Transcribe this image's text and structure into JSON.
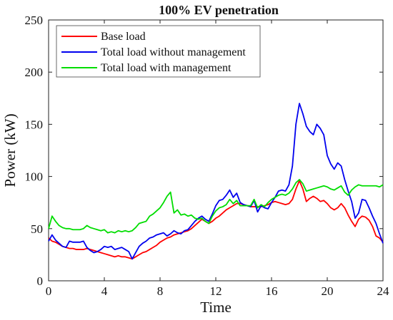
{
  "chart_data": {
    "type": "line",
    "title": "100% EV penetration",
    "xlabel": "Time",
    "ylabel": "Power (kW)",
    "xlim": [
      0,
      24
    ],
    "ylim": [
      0,
      250
    ],
    "xticks": [
      0,
      4,
      8,
      12,
      16,
      20,
      24
    ],
    "yticks": [
      0,
      50,
      100,
      150,
      200,
      250
    ],
    "grid": false,
    "legend_position": "top-left",
    "series": [
      {
        "name": "Base load",
        "color": "#ff0000",
        "points": [
          [
            0,
            41
          ],
          [
            0.25,
            38
          ],
          [
            0.5,
            37
          ],
          [
            0.75,
            35
          ],
          [
            1,
            33
          ],
          [
            1.25,
            32
          ],
          [
            1.5,
            31
          ],
          [
            1.75,
            31
          ],
          [
            2,
            30
          ],
          [
            2.25,
            30
          ],
          [
            2.5,
            30
          ],
          [
            2.75,
            31
          ],
          [
            3,
            30
          ],
          [
            3.25,
            29
          ],
          [
            3.5,
            28
          ],
          [
            3.75,
            27
          ],
          [
            4,
            26
          ],
          [
            4.25,
            25
          ],
          [
            4.5,
            24
          ],
          [
            4.75,
            23
          ],
          [
            5,
            24
          ],
          [
            5.25,
            23
          ],
          [
            5.5,
            23
          ],
          [
            5.75,
            22
          ],
          [
            6,
            21
          ],
          [
            6.25,
            23
          ],
          [
            6.5,
            25
          ],
          [
            6.75,
            27
          ],
          [
            7,
            28
          ],
          [
            7.25,
            30
          ],
          [
            7.5,
            32
          ],
          [
            7.75,
            34
          ],
          [
            8,
            37
          ],
          [
            8.25,
            39
          ],
          [
            8.5,
            41
          ],
          [
            8.75,
            42
          ],
          [
            9,
            44
          ],
          [
            9.25,
            45
          ],
          [
            9.5,
            46
          ],
          [
            9.75,
            47
          ],
          [
            10,
            48
          ],
          [
            10.25,
            50
          ],
          [
            10.5,
            53
          ],
          [
            10.75,
            56
          ],
          [
            11,
            59
          ],
          [
            11.25,
            57
          ],
          [
            11.5,
            55
          ],
          [
            11.75,
            57
          ],
          [
            12,
            60
          ],
          [
            12.25,
            62
          ],
          [
            12.5,
            65
          ],
          [
            12.75,
            68
          ],
          [
            13,
            70
          ],
          [
            13.25,
            72
          ],
          [
            13.5,
            74
          ],
          [
            13.75,
            74
          ],
          [
            14,
            73
          ],
          [
            14.25,
            72
          ],
          [
            14.5,
            71
          ],
          [
            14.75,
            71
          ],
          [
            15,
            71
          ],
          [
            15.25,
            71
          ],
          [
            15.5,
            72
          ],
          [
            15.75,
            73
          ],
          [
            16,
            75
          ],
          [
            16.25,
            76
          ],
          [
            16.5,
            75
          ],
          [
            16.75,
            74
          ],
          [
            17,
            73
          ],
          [
            17.25,
            74
          ],
          [
            17.5,
            78
          ],
          [
            17.75,
            88
          ],
          [
            18,
            96
          ],
          [
            18.25,
            88
          ],
          [
            18.5,
            76
          ],
          [
            18.75,
            79
          ],
          [
            19,
            81
          ],
          [
            19.25,
            79
          ],
          [
            19.5,
            76
          ],
          [
            19.75,
            77
          ],
          [
            20,
            74
          ],
          [
            20.25,
            70
          ],
          [
            20.5,
            68
          ],
          [
            20.75,
            70
          ],
          [
            21,
            74
          ],
          [
            21.25,
            70
          ],
          [
            21.5,
            63
          ],
          [
            21.75,
            57
          ],
          [
            22,
            52
          ],
          [
            22.25,
            59
          ],
          [
            22.5,
            62
          ],
          [
            22.75,
            61
          ],
          [
            23,
            58
          ],
          [
            23.25,
            52
          ],
          [
            23.5,
            43
          ],
          [
            23.75,
            41
          ],
          [
            24,
            37
          ]
        ]
      },
      {
        "name": "Total load without management",
        "color": "#0000ee",
        "points": [
          [
            0,
            38
          ],
          [
            0.25,
            44
          ],
          [
            0.5,
            39
          ],
          [
            0.75,
            36
          ],
          [
            1,
            33
          ],
          [
            1.25,
            32
          ],
          [
            1.5,
            38
          ],
          [
            1.75,
            37
          ],
          [
            2,
            37
          ],
          [
            2.25,
            37
          ],
          [
            2.5,
            38
          ],
          [
            2.75,
            32
          ],
          [
            3,
            29
          ],
          [
            3.25,
            27
          ],
          [
            3.5,
            28
          ],
          [
            3.75,
            30
          ],
          [
            4,
            33
          ],
          [
            4.25,
            32
          ],
          [
            4.5,
            33
          ],
          [
            4.75,
            30
          ],
          [
            5,
            31
          ],
          [
            5.25,
            32
          ],
          [
            5.5,
            30
          ],
          [
            5.75,
            28
          ],
          [
            6,
            21
          ],
          [
            6.25,
            27
          ],
          [
            6.5,
            33
          ],
          [
            6.75,
            36
          ],
          [
            7,
            38
          ],
          [
            7.25,
            41
          ],
          [
            7.5,
            42
          ],
          [
            7.75,
            44
          ],
          [
            8,
            45
          ],
          [
            8.25,
            46
          ],
          [
            8.5,
            43
          ],
          [
            8.75,
            45
          ],
          [
            9,
            48
          ],
          [
            9.25,
            46
          ],
          [
            9.5,
            45
          ],
          [
            9.75,
            48
          ],
          [
            10,
            49
          ],
          [
            10.25,
            53
          ],
          [
            10.5,
            57
          ],
          [
            10.75,
            60
          ],
          [
            11,
            62
          ],
          [
            11.25,
            59
          ],
          [
            11.5,
            57
          ],
          [
            11.75,
            64
          ],
          [
            12,
            72
          ],
          [
            12.25,
            77
          ],
          [
            12.5,
            78
          ],
          [
            12.75,
            82
          ],
          [
            13,
            87
          ],
          [
            13.25,
            80
          ],
          [
            13.5,
            84
          ],
          [
            13.75,
            75
          ],
          [
            14,
            73
          ],
          [
            14.25,
            72
          ],
          [
            14.5,
            71
          ],
          [
            14.75,
            77
          ],
          [
            15,
            66
          ],
          [
            15.25,
            72
          ],
          [
            15.5,
            70
          ],
          [
            15.75,
            69
          ],
          [
            16,
            75
          ],
          [
            16.25,
            80
          ],
          [
            16.5,
            86
          ],
          [
            16.75,
            87
          ],
          [
            17,
            86
          ],
          [
            17.25,
            92
          ],
          [
            17.5,
            110
          ],
          [
            17.75,
            150
          ],
          [
            18,
            170
          ],
          [
            18.25,
            160
          ],
          [
            18.5,
            148
          ],
          [
            18.75,
            143
          ],
          [
            19,
            140
          ],
          [
            19.25,
            150
          ],
          [
            19.5,
            146
          ],
          [
            19.75,
            140
          ],
          [
            20,
            120
          ],
          [
            20.25,
            112
          ],
          [
            20.5,
            107
          ],
          [
            20.75,
            113
          ],
          [
            21,
            110
          ],
          [
            21.25,
            97
          ],
          [
            21.5,
            86
          ],
          [
            21.75,
            76
          ],
          [
            22,
            60
          ],
          [
            22.25,
            65
          ],
          [
            22.5,
            78
          ],
          [
            22.75,
            77
          ],
          [
            23,
            70
          ],
          [
            23.25,
            62
          ],
          [
            23.5,
            55
          ],
          [
            23.75,
            45
          ],
          [
            24,
            36
          ]
        ]
      },
      {
        "name": "Total load with management",
        "color": "#00dd00",
        "points": [
          [
            0,
            50
          ],
          [
            0.25,
            62
          ],
          [
            0.5,
            57
          ],
          [
            0.75,
            53
          ],
          [
            1,
            51
          ],
          [
            1.25,
            50
          ],
          [
            1.5,
            50
          ],
          [
            1.75,
            49
          ],
          [
            2,
            49
          ],
          [
            2.25,
            49
          ],
          [
            2.5,
            50
          ],
          [
            2.75,
            53
          ],
          [
            3,
            51
          ],
          [
            3.25,
            50
          ],
          [
            3.5,
            49
          ],
          [
            3.75,
            48
          ],
          [
            4,
            49
          ],
          [
            4.25,
            46
          ],
          [
            4.5,
            47
          ],
          [
            4.75,
            46
          ],
          [
            5,
            48
          ],
          [
            5.25,
            47
          ],
          [
            5.5,
            48
          ],
          [
            5.75,
            47
          ],
          [
            6,
            48
          ],
          [
            6.25,
            51
          ],
          [
            6.5,
            55
          ],
          [
            6.75,
            56
          ],
          [
            7,
            57
          ],
          [
            7.25,
            62
          ],
          [
            7.5,
            64
          ],
          [
            7.75,
            67
          ],
          [
            8,
            70
          ],
          [
            8.25,
            75
          ],
          [
            8.5,
            81
          ],
          [
            8.75,
            85
          ],
          [
            9,
            65
          ],
          [
            9.25,
            68
          ],
          [
            9.5,
            63
          ],
          [
            9.75,
            64
          ],
          [
            10,
            62
          ],
          [
            10.25,
            63
          ],
          [
            10.5,
            60
          ],
          [
            10.75,
            59
          ],
          [
            11,
            60
          ],
          [
            11.25,
            57
          ],
          [
            11.5,
            55
          ],
          [
            11.75,
            62
          ],
          [
            12,
            67
          ],
          [
            12.25,
            70
          ],
          [
            12.5,
            71
          ],
          [
            12.75,
            73
          ],
          [
            13,
            78
          ],
          [
            13.25,
            74
          ],
          [
            13.5,
            77
          ],
          [
            13.75,
            72
          ],
          [
            14,
            72
          ],
          [
            14.25,
            72
          ],
          [
            14.5,
            72
          ],
          [
            14.75,
            78
          ],
          [
            15,
            70
          ],
          [
            15.25,
            73
          ],
          [
            15.5,
            71
          ],
          [
            15.75,
            75
          ],
          [
            16,
            78
          ],
          [
            16.25,
            80
          ],
          [
            16.5,
            82
          ],
          [
            16.75,
            83
          ],
          [
            17,
            82
          ],
          [
            17.25,
            84
          ],
          [
            17.5,
            88
          ],
          [
            17.75,
            94
          ],
          [
            18,
            97
          ],
          [
            18.25,
            93
          ],
          [
            18.5,
            86
          ],
          [
            18.75,
            87
          ],
          [
            19,
            88
          ],
          [
            19.25,
            89
          ],
          [
            19.5,
            90
          ],
          [
            19.75,
            91
          ],
          [
            20,
            90
          ],
          [
            20.25,
            88
          ],
          [
            20.5,
            87
          ],
          [
            20.75,
            89
          ],
          [
            21,
            91
          ],
          [
            21.25,
            85
          ],
          [
            21.5,
            82
          ],
          [
            21.75,
            87
          ],
          [
            22,
            90
          ],
          [
            22.25,
            92
          ],
          [
            22.5,
            91
          ],
          [
            22.75,
            91
          ],
          [
            23,
            91
          ],
          [
            23.25,
            91
          ],
          [
            23.5,
            91
          ],
          [
            23.75,
            90
          ],
          [
            24,
            92
          ]
        ]
      }
    ]
  }
}
